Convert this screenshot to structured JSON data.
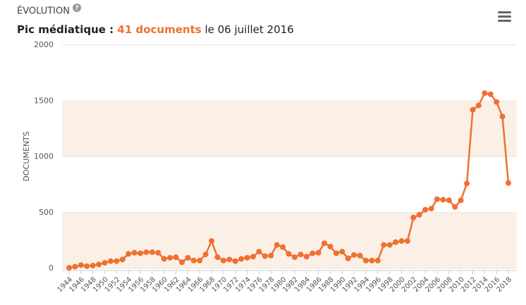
{
  "chart_data": {
    "type": "line",
    "title": "ÉVOLUTION",
    "subtitle": {
      "prefix": "Pic médiatique : ",
      "highlight": "41 documents",
      "suffix": " le 06 juillet 2016"
    },
    "y_label": "DOCUMENTS",
    "x": [
      1944,
      1945,
      1946,
      1947,
      1948,
      1949,
      1950,
      1951,
      1952,
      1953,
      1954,
      1955,
      1956,
      1957,
      1958,
      1959,
      1960,
      1961,
      1962,
      1963,
      1964,
      1965,
      1966,
      1967,
      1968,
      1969,
      1970,
      1971,
      1972,
      1973,
      1974,
      1975,
      1976,
      1977,
      1978,
      1979,
      1980,
      1981,
      1982,
      1983,
      1984,
      1985,
      1986,
      1987,
      1988,
      1989,
      1990,
      1991,
      1992,
      1993,
      1994,
      1995,
      1996,
      1997,
      1998,
      1999,
      2000,
      2001,
      2002,
      2003,
      2004,
      2005,
      2006,
      2007,
      2008,
      2009,
      2010,
      2011,
      2012,
      2013,
      2014,
      2015,
      2016,
      2017,
      2018
    ],
    "series": [
      {
        "name": "Documents",
        "color": "#f07030",
        "values": [
          5,
          15,
          30,
          20,
          25,
          35,
          50,
          65,
          65,
          80,
          130,
          140,
          135,
          145,
          145,
          140,
          85,
          95,
          100,
          55,
          95,
          70,
          70,
          125,
          245,
          100,
          70,
          80,
          65,
          85,
          95,
          105,
          150,
          110,
          115,
          210,
          190,
          130,
          100,
          125,
          105,
          135,
          140,
          225,
          195,
          135,
          150,
          90,
          120,
          115,
          70,
          70,
          70,
          210,
          210,
          235,
          245,
          245,
          455,
          480,
          525,
          535,
          620,
          615,
          610,
          550,
          610,
          760,
          1420,
          1460,
          1570,
          1560,
          1490,
          1360,
          765
        ]
      }
    ],
    "xlim": [
      1944,
      2018
    ],
    "xticks": [
      1944,
      1946,
      1948,
      1950,
      1952,
      1954,
      1956,
      1958,
      1960,
      1962,
      1964,
      1966,
      1968,
      1970,
      1972,
      1974,
      1976,
      1978,
      1980,
      1982,
      1984,
      1986,
      1988,
      1990,
      1992,
      1994,
      1996,
      1998,
      2000,
      2002,
      2004,
      2006,
      2008,
      2010,
      2012,
      2014,
      2016,
      2018
    ],
    "ylim": [
      0,
      2000
    ],
    "yticks": [
      0,
      500,
      1000,
      1500,
      2000
    ],
    "band_color": "#fbf0e6"
  }
}
